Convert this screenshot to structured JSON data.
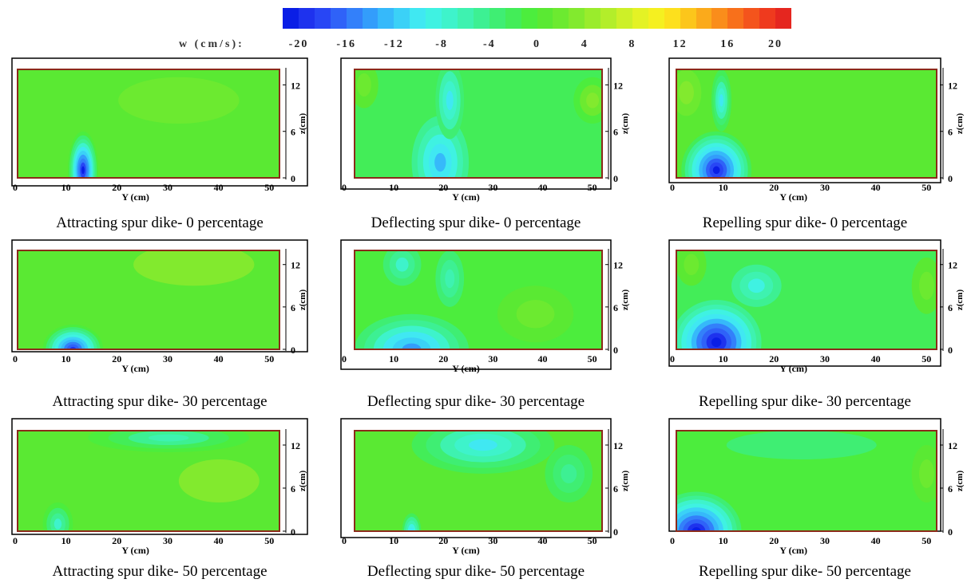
{
  "colorbar": {
    "title": "w (cm/s):",
    "ticks": [
      "-20",
      "-16",
      "-12",
      "-8",
      "-4",
      "0",
      "4",
      "8",
      "12",
      "16",
      "20"
    ],
    "range": [
      -20,
      20
    ],
    "colors": [
      "#0a1ee6",
      "#1e32ee",
      "#2846f5",
      "#2f62f8",
      "#3380fa",
      "#339dfb",
      "#36b9fa",
      "#3bd1f7",
      "#40e8f2",
      "#3ff2e2",
      "#3ef3cb",
      "#3ef2b0",
      "#3df093",
      "#3fee73",
      "#43ed58",
      "#4ced3d",
      "#5ae933",
      "#6cea30",
      "#82ea2e",
      "#9aec2c",
      "#b3ee2a",
      "#cdf028",
      "#e4f225",
      "#f5f020",
      "#fde01d",
      "#fcc61b",
      "#fbaa1b",
      "#fa8d1b",
      "#f8701b",
      "#f4541c",
      "#ef3a1e",
      "#e5261f"
    ]
  },
  "chart_data": [
    {
      "type": "heatmap",
      "title": "Attracting spur dike- 0 percentage",
      "xlabel": "Y (cm)",
      "ylabel": "z(cm)",
      "xlim": [
        0,
        52
      ],
      "ylim": [
        0,
        14
      ],
      "xticks": [
        "0",
        "10",
        "20",
        "30",
        "40",
        "50"
      ],
      "yticks": [
        "0",
        "6",
        "12"
      ],
      "base": 1,
      "blobs": [
        {
          "x": 13,
          "z": 1,
          "rx": 3,
          "rz": 5,
          "w": -19
        },
        {
          "x": 32,
          "z": 10,
          "rx": 12,
          "rz": 3,
          "w": 2
        }
      ]
    },
    {
      "type": "heatmap",
      "title": "Deflecting spur dike- 0 percentage",
      "xlabel": "Y (cm)",
      "ylabel": "z(cm)",
      "xlim": [
        0,
        52
      ],
      "ylim": [
        0,
        14
      ],
      "xticks": [
        "0",
        "10",
        "20",
        "30",
        "40",
        "50"
      ],
      "yticks": [
        "0",
        "6",
        "12"
      ],
      "base": -2,
      "blobs": [
        {
          "x": 18,
          "z": 2,
          "rx": 6,
          "rz": 6,
          "w": -12
        },
        {
          "x": 20,
          "z": 10,
          "rx": 3,
          "rz": 5,
          "w": -9
        },
        {
          "x": 50,
          "z": 10,
          "rx": 4,
          "rz": 3,
          "w": 3
        },
        {
          "x": 2,
          "z": 12,
          "rx": 3,
          "rz": 3,
          "w": 2
        }
      ]
    },
    {
      "type": "heatmap",
      "title": "Repelling spur dike- 0 percentage",
      "xlabel": "Y (cm)",
      "ylabel": "z(cm)",
      "xlim": [
        0,
        52
      ],
      "ylim": [
        0,
        14
      ],
      "xticks": [
        "0",
        "10",
        "20",
        "30",
        "40",
        "50"
      ],
      "yticks": [
        "0",
        "6",
        "12"
      ],
      "base": 0,
      "blobs": [
        {
          "x": 8,
          "z": 1,
          "rx": 7,
          "rz": 5,
          "w": -19
        },
        {
          "x": 9,
          "z": 10,
          "rx": 2,
          "rz": 4,
          "w": -9
        },
        {
          "x": 2,
          "z": 11,
          "rx": 3,
          "rz": 3,
          "w": 3
        }
      ]
    },
    {
      "type": "heatmap",
      "title": "Attracting spur dike- 30 percentage",
      "xlabel": "Y (cm)",
      "ylabel": "z(cm)",
      "xlim": [
        0,
        52
      ],
      "ylim": [
        0,
        14
      ],
      "xticks": [
        "0",
        "10",
        "20",
        "30",
        "40",
        "50"
      ],
      "yticks": [
        "0",
        "6",
        "12"
      ],
      "base": 1,
      "blobs": [
        {
          "x": 11,
          "z": 0,
          "rx": 6,
          "rz": 3.5,
          "w": -18
        },
        {
          "x": 35,
          "z": 12,
          "rx": 12,
          "rz": 3,
          "w": 3
        }
      ]
    },
    {
      "type": "heatmap",
      "title": "Deflecting spur dike- 30 percentage",
      "xlabel": "Y (cm)",
      "ylabel": "z(cm)",
      "xlim": [
        0,
        52
      ],
      "ylim": [
        0,
        14
      ],
      "xticks": [
        "0",
        "10",
        "20",
        "30",
        "40",
        "50"
      ],
      "yticks": [
        "0",
        "6",
        "12"
      ],
      "base": -1,
      "blobs": [
        {
          "x": 12,
          "z": 0,
          "rx": 12,
          "rz": 5,
          "w": -13
        },
        {
          "x": 10,
          "z": 12,
          "rx": 4,
          "rz": 3,
          "w": -7
        },
        {
          "x": 20,
          "z": 10,
          "rx": 3,
          "rz": 4,
          "w": -6
        },
        {
          "x": 38,
          "z": 5,
          "rx": 8,
          "rz": 4,
          "w": 2
        }
      ]
    },
    {
      "type": "heatmap",
      "title": "Repelling spur dike- 30 percentage",
      "xlabel": "Y (cm)",
      "ylabel": "z(cm)",
      "xlim": [
        0,
        52
      ],
      "ylim": [
        0,
        14
      ],
      "xticks": [
        "0",
        "10",
        "20",
        "30",
        "40",
        "50"
      ],
      "yticks": [
        "0",
        "6",
        "12"
      ],
      "base": -2,
      "blobs": [
        {
          "x": 8,
          "z": 1,
          "rx": 9,
          "rz": 6,
          "w": -20
        },
        {
          "x": 16,
          "z": 9,
          "rx": 5,
          "rz": 3,
          "w": -8
        },
        {
          "x": 3,
          "z": 12,
          "rx": 3,
          "rz": 3,
          "w": 2
        },
        {
          "x": 50,
          "z": 9,
          "rx": 3,
          "rz": 4,
          "w": 2
        }
      ]
    },
    {
      "type": "heatmap",
      "title": "Attracting spur dike- 50 percentage",
      "xlabel": "Y (cm)",
      "ylabel": "z(cm)",
      "xlim": [
        0,
        52
      ],
      "ylim": [
        0,
        14
      ],
      "xticks": [
        "0",
        "10",
        "20",
        "30",
        "40",
        "50"
      ],
      "yticks": [
        "0",
        "6",
        "12"
      ],
      "base": 1,
      "blobs": [
        {
          "x": 30,
          "z": 13,
          "rx": 16,
          "rz": 2,
          "w": -6
        },
        {
          "x": 8,
          "z": 1,
          "rx": 3,
          "rz": 3,
          "w": -7
        },
        {
          "x": 40,
          "z": 7,
          "rx": 8,
          "rz": 3,
          "w": 3
        }
      ]
    },
    {
      "type": "heatmap",
      "title": "Deflecting spur dike- 50 percentage",
      "xlabel": "Y (cm)",
      "ylabel": "z(cm)",
      "xlim": [
        0,
        52
      ],
      "ylim": [
        0,
        14
      ],
      "xticks": [
        "0",
        "10",
        "20",
        "30",
        "40",
        "50"
      ],
      "yticks": [
        "0",
        "6",
        "12"
      ],
      "base": 0,
      "blobs": [
        {
          "x": 27,
          "z": 12,
          "rx": 15,
          "rz": 4,
          "w": -9
        },
        {
          "x": 45,
          "z": 8,
          "rx": 5,
          "rz": 4,
          "w": -5
        },
        {
          "x": 12,
          "z": 0,
          "rx": 2,
          "rz": 2.5,
          "w": -10
        }
      ]
    },
    {
      "type": "heatmap",
      "title": "Repelling spur dike- 50 percentage",
      "xlabel": "Y (cm)",
      "ylabel": "z(cm)",
      "xlim": [
        0,
        52
      ],
      "ylim": [
        0,
        14
      ],
      "xticks": [
        "0",
        "10",
        "20",
        "30",
        "40",
        "50"
      ],
      "yticks": [
        "0",
        "6",
        "12"
      ],
      "base": -1,
      "blobs": [
        {
          "x": 4,
          "z": 0,
          "rx": 9,
          "rz": 5.5,
          "w": -20
        },
        {
          "x": 50,
          "z": 8,
          "rx": 3,
          "rz": 4,
          "w": 2
        },
        {
          "x": 25,
          "z": 12,
          "rx": 15,
          "rz": 2,
          "w": -3
        }
      ]
    }
  ]
}
